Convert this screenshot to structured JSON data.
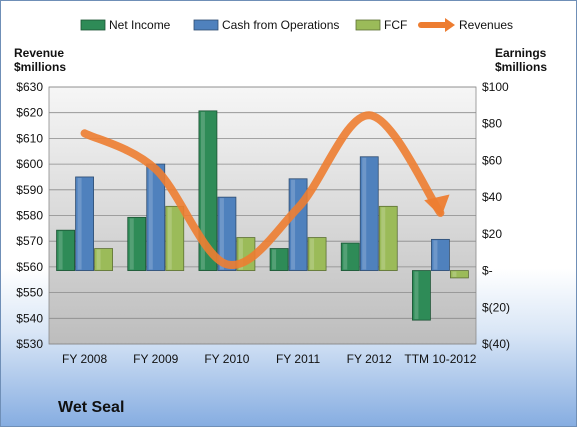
{
  "chart_data": {
    "type": "bar",
    "title": "Wet Seal",
    "categories": [
      "FY 2008",
      "FY 2009",
      "FY 2010",
      "FY 2011",
      "FY 2012",
      "TTM 10-2012"
    ],
    "series": [
      {
        "name": "Net Income",
        "axis": "right",
        "color": "#2e8b57",
        "values": [
          22,
          29,
          87,
          12,
          15,
          -27
        ]
      },
      {
        "name": "Cash from Operations",
        "axis": "right",
        "color": "#4f81bd",
        "values": [
          51,
          58,
          40,
          50,
          62,
          17
        ]
      },
      {
        "name": "FCF",
        "axis": "right",
        "color": "#9bbb59",
        "values": [
          12,
          35,
          18,
          18,
          35,
          -4
        ]
      },
      {
        "name": "Revenues",
        "axis": "left",
        "type": "line",
        "color": "#ed7d31",
        "values": [
          612,
          598,
          561,
          583,
          619,
          581
        ]
      }
    ],
    "left_axis": {
      "label": "Revenue $millions",
      "lim": [
        530,
        630
      ],
      "ticks": [
        "$630",
        "$620",
        "$610",
        "$600",
        "$590",
        "$580",
        "$570",
        "$560",
        "$550",
        "$540",
        "$530"
      ]
    },
    "right_axis": {
      "label": "Earnings $millions",
      "lim": [
        -40,
        100
      ],
      "ticks": [
        "$100",
        "$80",
        "$60",
        "$40",
        "$20",
        "$-",
        "$(20)",
        "$(40)"
      ]
    },
    "legend_position": "top",
    "grid": true
  }
}
